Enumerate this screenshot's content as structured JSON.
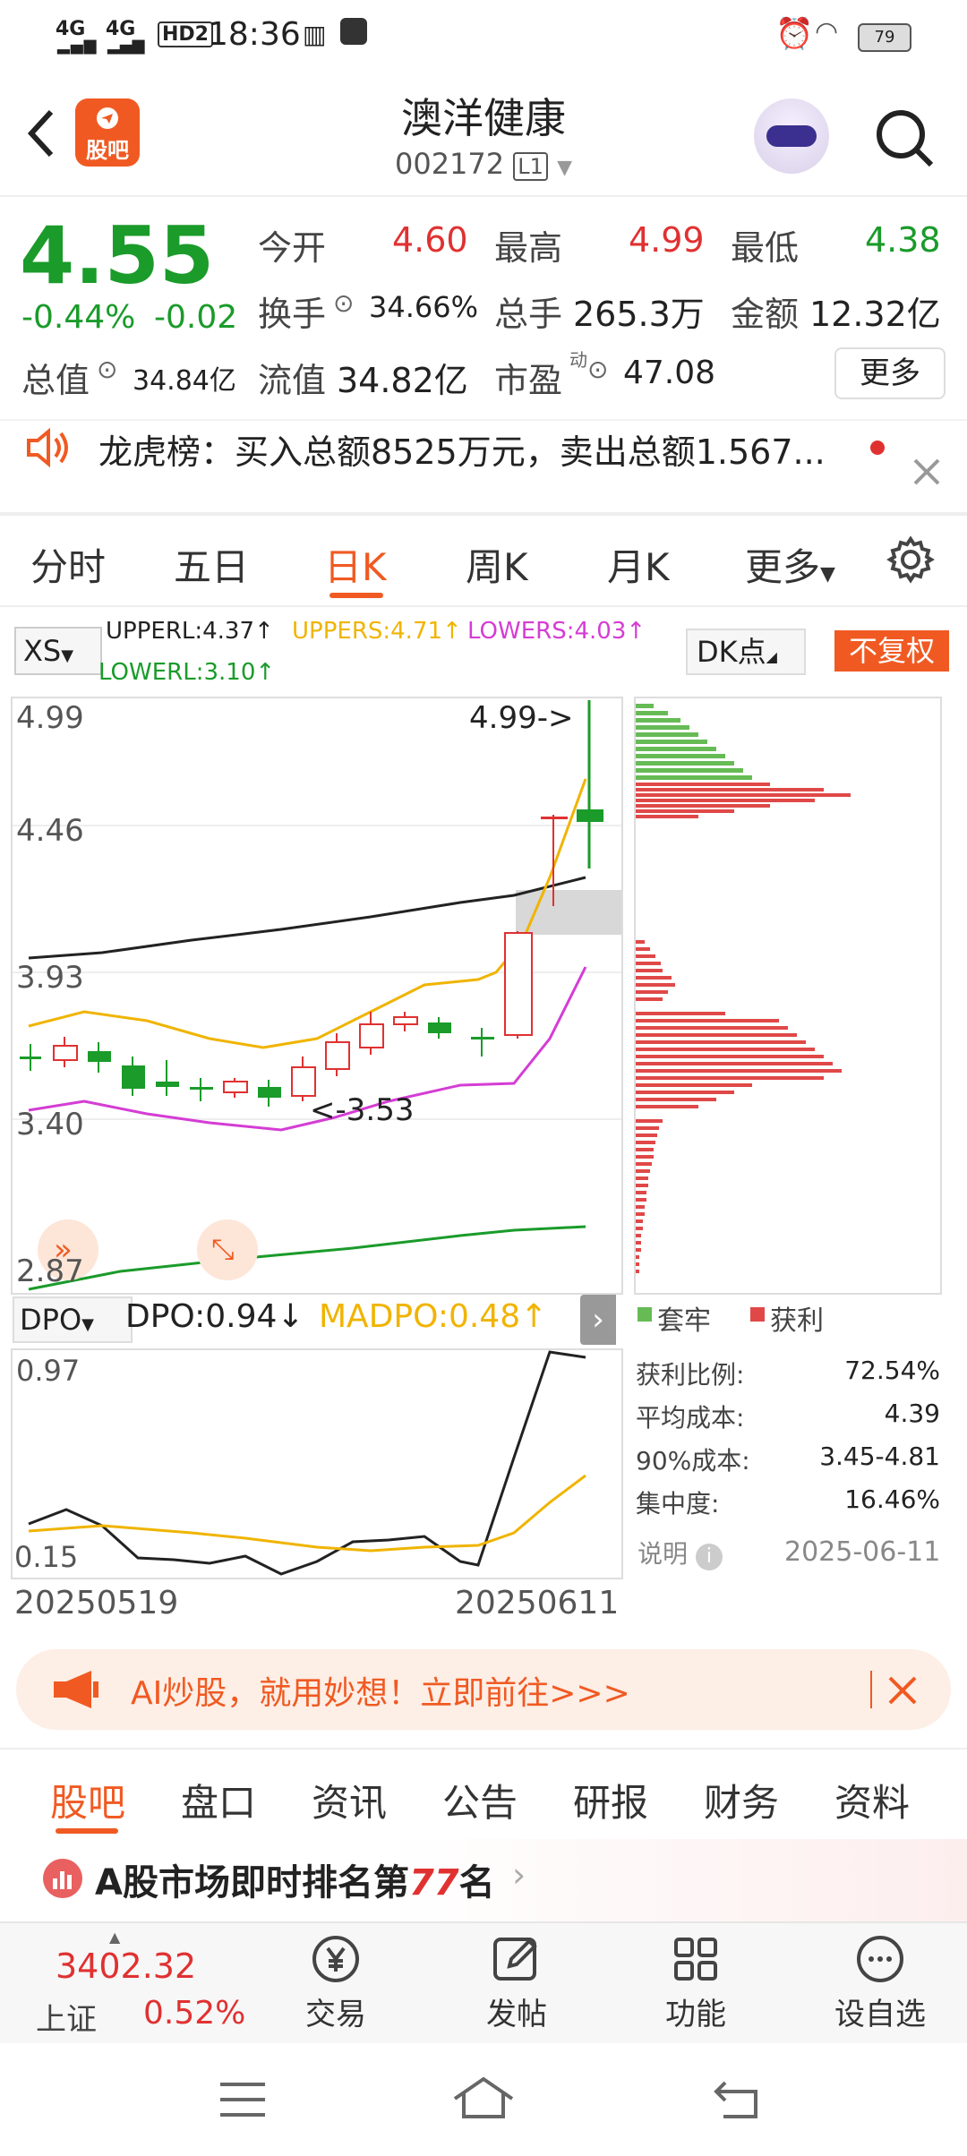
{
  "status": {
    "time": "18:36",
    "network1": "4G",
    "network2": "4G",
    "hd": "HD2",
    "battery": "79"
  },
  "header": {
    "title": "澳洋健康",
    "code": "002172",
    "level": "L1",
    "badge": "股吧"
  },
  "quote": {
    "price": "4.55",
    "pct": "-0.44%",
    "chg": "-0.02",
    "open_label": "今开",
    "open": "4.60",
    "high_label": "最高",
    "high": "4.99",
    "low_label": "最低",
    "low": "4.38",
    "turnover_label": "换手",
    "turnover": "34.66%",
    "volume_label": "总手",
    "volume": "265.3万",
    "amount_label": "金额",
    "amount": "12.32亿",
    "mcap_label": "总值",
    "mcap": "34.84亿",
    "float_label": "流值",
    "float": "34.82亿",
    "pe_label": "市盈",
    "pe_sup": "动",
    "pe": "47.08",
    "more": "更多"
  },
  "notice": {
    "text": "龙虎榜：买入总额8525万元，卖出总额1.567..."
  },
  "ktabs": [
    {
      "label": "分时"
    },
    {
      "label": "五日"
    },
    {
      "label": "日K"
    },
    {
      "label": "周K"
    },
    {
      "label": "月K"
    },
    {
      "label": "更多"
    }
  ],
  "indicator": {
    "xs": "XS",
    "upperl": "UPPERL:4.37↑",
    "uppers": "UPPERS:4.71↑",
    "lowers": "LOWERS:4.03↑",
    "lowerl": "LOWERL:3.10↑",
    "dk": "DK点",
    "fq": "不复权"
  },
  "chart": {
    "y_labels": [
      "4.99",
      "4.46",
      "3.93",
      "3.40",
      "2.87"
    ],
    "max_label": "4.99->",
    "min_label": "<-3.53",
    "dpo_name": "DPO",
    "dpo": "DPO:0.94↓",
    "madpo": "MADPO:0.48↑",
    "dpo_top": "0.97",
    "dpo_bottom": "0.15",
    "date_start": "20250519",
    "date_end": "20250611"
  },
  "chips": {
    "legend_trap": "套牢",
    "legend_profit": "获利",
    "rows": [
      {
        "label": "获利比例:",
        "value": "72.54%"
      },
      {
        "label": "平均成本:",
        "value": "4.39"
      },
      {
        "label": "90%成本:",
        "value": "3.45-4.81"
      },
      {
        "label": "集中度:",
        "value": "16.46%"
      }
    ],
    "note": "说明",
    "date": "2025-06-11"
  },
  "banner": {
    "text": "AI炒股，就用妙想！立即前往>>>"
  },
  "btabs": [
    {
      "label": "股吧"
    },
    {
      "label": "盘口"
    },
    {
      "label": "资讯"
    },
    {
      "label": "公告"
    },
    {
      "label": "研报"
    },
    {
      "label": "财务"
    },
    {
      "label": "资料"
    }
  ],
  "rank": {
    "prefix": "A股市场即时排名第",
    "num": "77",
    "suffix": "名"
  },
  "bottomnav": {
    "index_val": "3402.32",
    "index_name": "上证",
    "index_pct": "0.52%",
    "items": [
      {
        "label": "交易"
      },
      {
        "label": "发帖"
      },
      {
        "label": "功能"
      },
      {
        "label": "设自选"
      }
    ]
  },
  "colors": {
    "accent": "#f05a22",
    "up": "#e03131",
    "down": "#1a9b2a",
    "ma_yellow": "#f0b400",
    "ma_purple": "#d43dd4"
  }
}
